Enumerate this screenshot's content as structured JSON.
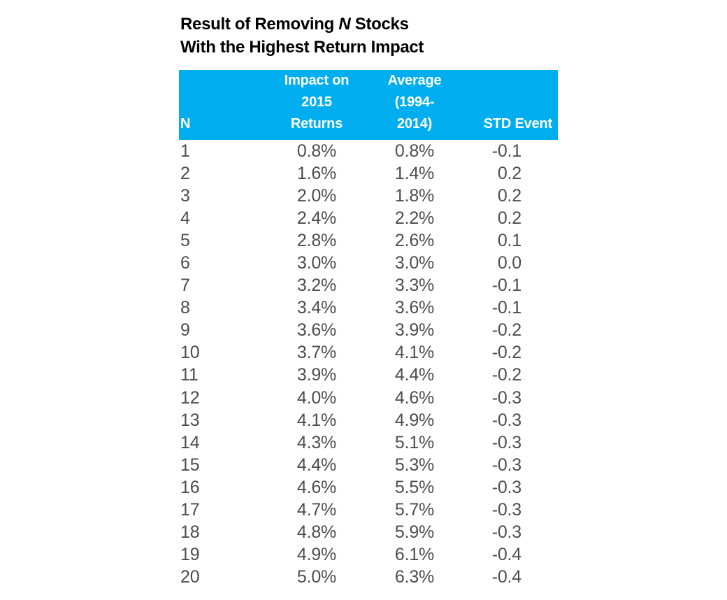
{
  "title": {
    "line1_prefix": "Result of Removing ",
    "line1_italic": "N",
    "line1_suffix": " Stocks",
    "line2": "With the Highest Return Impact"
  },
  "colors": {
    "header_bg": "#00AEEF",
    "header_text": "#FFFFFF",
    "body_text": "#4D4D4D",
    "title_text": "#000000"
  },
  "table": {
    "header": {
      "n": "N",
      "impact_lines": [
        "Impact on",
        "2015",
        "Returns"
      ],
      "average_lines": [
        "Average",
        "(1994-",
        "2014)"
      ],
      "std": "STD Event"
    }
  },
  "chart_data": {
    "type": "table",
    "title": "Result of Removing N Stocks With the Highest Return Impact",
    "columns": [
      "N",
      "Impact on 2015 Returns",
      "Average (1994-2014)",
      "STD Event"
    ],
    "rows": [
      [
        "1",
        "0.8%",
        "0.8%",
        "-0.1"
      ],
      [
        "2",
        "1.6%",
        "1.4%",
        "0.2"
      ],
      [
        "3",
        "2.0%",
        "1.8%",
        "0.2"
      ],
      [
        "4",
        "2.4%",
        "2.2%",
        "0.2"
      ],
      [
        "5",
        "2.8%",
        "2.6%",
        "0.1"
      ],
      [
        "6",
        "3.0%",
        "3.0%",
        "0.0"
      ],
      [
        "7",
        "3.2%",
        "3.3%",
        "-0.1"
      ],
      [
        "8",
        "3.4%",
        "3.6%",
        "-0.1"
      ],
      [
        "9",
        "3.6%",
        "3.9%",
        "-0.2"
      ],
      [
        "10",
        "3.7%",
        "4.1%",
        "-0.2"
      ],
      [
        "11",
        "3.9%",
        "4.4%",
        "-0.2"
      ],
      [
        "12",
        "4.0%",
        "4.6%",
        "-0.3"
      ],
      [
        "13",
        "4.1%",
        "4.9%",
        "-0.3"
      ],
      [
        "14",
        "4.3%",
        "5.1%",
        "-0.3"
      ],
      [
        "15",
        "4.4%",
        "5.3%",
        "-0.3"
      ],
      [
        "16",
        "4.6%",
        "5.5%",
        "-0.3"
      ],
      [
        "17",
        "4.7%",
        "5.7%",
        "-0.3"
      ],
      [
        "18",
        "4.8%",
        "5.9%",
        "-0.3"
      ],
      [
        "19",
        "4.9%",
        "6.1%",
        "-0.4"
      ],
      [
        "20",
        "5.0%",
        "6.3%",
        "-0.4"
      ]
    ]
  }
}
